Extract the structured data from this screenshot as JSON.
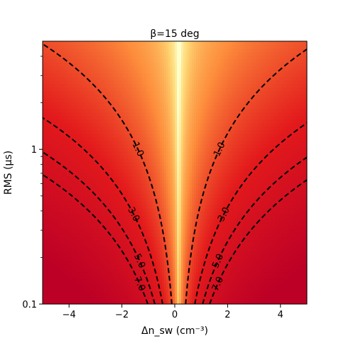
{
  "chart_data": {
    "type": "heatmap",
    "title": "β=15 deg",
    "xlabel": "Δn_sw (cm⁻³)",
    "ylabel": "RMS (μs)",
    "xlim": [
      -5,
      5
    ],
    "ylim": [
      0.1,
      5
    ],
    "yscale": "log",
    "xticks": [
      -4,
      -2,
      0,
      2,
      4
    ],
    "xtick_labels": [
      "−4",
      "−2",
      "0",
      "2",
      "4"
    ],
    "yticks": [
      0.1,
      1
    ],
    "ytick_labels": [
      "0.1",
      "1"
    ],
    "colormap": "YlOrRd",
    "colormap_colors": [
      "#ffffcc",
      "#fed976",
      "#fd8d3c",
      "#e31a1c",
      "#bd0026"
    ],
    "grid": false,
    "contour_style": "black dashed",
    "contours": [
      {
        "level": 1.0,
        "label": "1.0"
      },
      {
        "level": 3.0,
        "label": "3.0"
      },
      {
        "level": 5.0,
        "label": "5.0"
      },
      {
        "level": 7.0,
        "label": "7.0"
      }
    ]
  }
}
